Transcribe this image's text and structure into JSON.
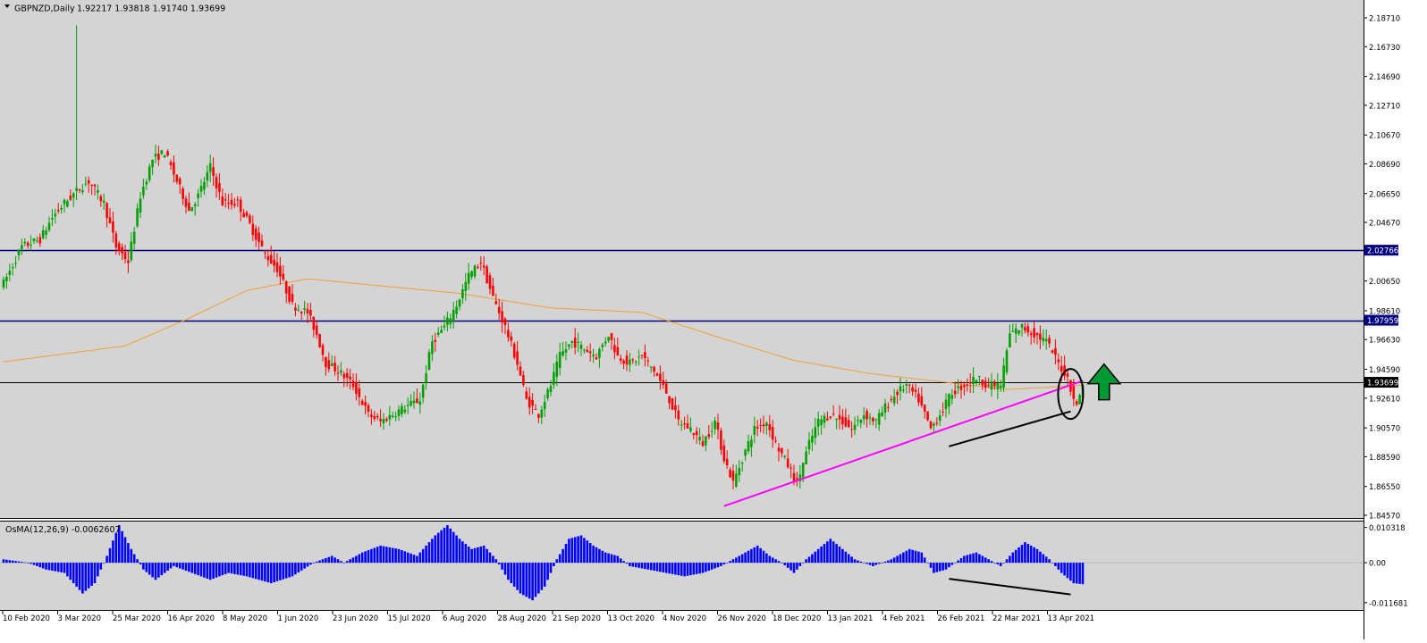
{
  "header": {
    "symbol": "GBPNZD,Daily",
    "ohlc": "1.92217 1.93818 1.91740 1.93699"
  },
  "osma": {
    "label": "OsMA(12,26,9) -0.0062607",
    "axis_labels": [
      "0.010318",
      "0.00",
      "-0.011681"
    ]
  },
  "colors": {
    "background": "#d4d4d4",
    "bull": "#00a000",
    "bear": "#ff0000",
    "ma": "#f0a030",
    "hline": "#000080",
    "support": "#ff00ff",
    "histogram": "#0000ff",
    "arrow": "#009933"
  },
  "chart_data": {
    "type": "candlestick",
    "y_range": [
      1.8457,
      2.1871
    ],
    "y_ticks": [
      "2.18710",
      "2.16730",
      "2.14690",
      "2.12710",
      "2.10670",
      "2.08690",
      "2.06650",
      "2.04670",
      "2.00650",
      "1.98610",
      "1.96630",
      "1.94590",
      "1.92610",
      "1.90570",
      "1.88590",
      "1.86550",
      "1.84570"
    ],
    "x_labels": [
      "10 Feb 2020",
      "3 Mar 2020",
      "25 Mar 2020",
      "16 Apr 2020",
      "8 May 2020",
      "1 Jun 2020",
      "23 Jun 2020",
      "15 Jul 2020",
      "6 Aug 2020",
      "28 Aug 2020",
      "21 Sep 2020",
      "13 Oct 2020",
      "4 Nov 2020",
      "26 Nov 2020",
      "18 Dec 2020",
      "13 Jan 2021",
      "4 Feb 2021",
      "26 Feb 2021",
      "22 Mar 2021",
      "13 Apr 2021"
    ],
    "price_levels": [
      {
        "value": 2.02766,
        "label": "2.02766"
      },
      {
        "value": 1.97959,
        "label": "1.97959"
      },
      {
        "value": 1.93699,
        "label": "1.93699"
      }
    ],
    "waypoints": [
      [
        0,
        2.005
      ],
      [
        6,
        2.03
      ],
      [
        12,
        2.035
      ],
      [
        16,
        2.05
      ],
      [
        20,
        2.06
      ],
      [
        25,
        2.07
      ],
      [
        28,
        2.075
      ],
      [
        33,
        2.06
      ],
      [
        37,
        2.03
      ],
      [
        41,
        2.02
      ],
      [
        45,
        2.065
      ],
      [
        49,
        2.09
      ],
      [
        53,
        2.095
      ],
      [
        57,
        2.075
      ],
      [
        61,
        2.055
      ],
      [
        64,
        2.065
      ],
      [
        68,
        2.085
      ],
      [
        72,
        2.06
      ],
      [
        77,
        2.06
      ],
      [
        81,
        2.045
      ],
      [
        86,
        2.025
      ],
      [
        90,
        2.015
      ],
      [
        95,
        1.99
      ],
      [
        100,
        1.985
      ],
      [
        103,
        1.97
      ],
      [
        106,
        1.95
      ],
      [
        110,
        1.945
      ],
      [
        115,
        1.935
      ],
      [
        120,
        1.915
      ],
      [
        124,
        1.91
      ],
      [
        128,
        1.915
      ],
      [
        132,
        1.92
      ],
      [
        137,
        1.925
      ],
      [
        141,
        1.965
      ],
      [
        145,
        1.975
      ],
      [
        149,
        1.99
      ],
      [
        153,
        2.01
      ],
      [
        157,
        2.02
      ],
      [
        161,
        1.995
      ],
      [
        165,
        1.975
      ],
      [
        169,
        1.95
      ],
      [
        172,
        1.925
      ],
      [
        176,
        1.915
      ],
      [
        180,
        1.935
      ],
      [
        183,
        1.955
      ],
      [
        187,
        1.965
      ],
      [
        191,
        1.96
      ],
      [
        195,
        1.955
      ],
      [
        199,
        1.97
      ],
      [
        202,
        1.955
      ],
      [
        206,
        1.95
      ],
      [
        210,
        1.955
      ],
      [
        214,
        1.945
      ],
      [
        218,
        1.93
      ],
      [
        222,
        1.91
      ],
      [
        226,
        1.905
      ],
      [
        230,
        1.895
      ],
      [
        234,
        1.91
      ],
      [
        237,
        1.885
      ],
      [
        240,
        1.868
      ],
      [
        244,
        1.89
      ],
      [
        247,
        1.905
      ],
      [
        251,
        1.91
      ],
      [
        254,
        1.895
      ],
      [
        258,
        1.88
      ],
      [
        261,
        1.868
      ],
      [
        265,
        1.895
      ],
      [
        268,
        1.91
      ],
      [
        272,
        1.915
      ],
      [
        276,
        1.91
      ],
      [
        279,
        1.905
      ],
      [
        283,
        1.915
      ],
      [
        287,
        1.91
      ],
      [
        290,
        1.92
      ],
      [
        294,
        1.93
      ],
      [
        297,
        1.935
      ],
      [
        301,
        1.925
      ],
      [
        305,
        1.905
      ],
      [
        308,
        1.915
      ],
      [
        312,
        1.93
      ],
      [
        316,
        1.935
      ],
      [
        320,
        1.94
      ],
      [
        324,
        1.935
      ],
      [
        328,
        1.935
      ],
      [
        331,
        1.97
      ],
      [
        335,
        1.975
      ],
      [
        339,
        1.97
      ],
      [
        343,
        1.965
      ],
      [
        347,
        1.95
      ],
      [
        350,
        1.94
      ],
      [
        353,
        1.92
      ],
      [
        355,
        1.937
      ]
    ],
    "ma_path": [
      [
        0,
        1.951
      ],
      [
        40,
        1.962
      ],
      [
        60,
        1.98
      ],
      [
        80,
        2.0
      ],
      [
        100,
        2.008
      ],
      [
        120,
        2.004
      ],
      [
        150,
        1.998
      ],
      [
        180,
        1.988
      ],
      [
        210,
        1.985
      ],
      [
        235,
        1.968
      ],
      [
        260,
        1.952
      ],
      [
        285,
        1.943
      ],
      [
        310,
        1.937
      ],
      [
        330,
        1.932
      ],
      [
        355,
        1.935
      ]
    ],
    "spike_wick": {
      "index": 24,
      "high": 2.182
    },
    "osma_waypoints": [
      [
        0,
        0.001
      ],
      [
        8,
        0.0
      ],
      [
        14,
        -0.002
      ],
      [
        20,
        -0.003
      ],
      [
        26,
        -0.009
      ],
      [
        30,
        -0.006
      ],
      [
        34,
        0.002
      ],
      [
        38,
        0.011
      ],
      [
        42,
        0.004
      ],
      [
        46,
        -0.002
      ],
      [
        50,
        -0.005
      ],
      [
        56,
        -0.001
      ],
      [
        62,
        -0.003
      ],
      [
        68,
        -0.005
      ],
      [
        74,
        -0.003
      ],
      [
        80,
        -0.004
      ],
      [
        88,
        -0.006
      ],
      [
        95,
        -0.004
      ],
      [
        102,
        0.0
      ],
      [
        108,
        0.002
      ],
      [
        112,
        0.0
      ],
      [
        118,
        0.003
      ],
      [
        124,
        0.005
      ],
      [
        130,
        0.004
      ],
      [
        136,
        0.002
      ],
      [
        142,
        0.008
      ],
      [
        146,
        0.011
      ],
      [
        150,
        0.007
      ],
      [
        154,
        0.004
      ],
      [
        158,
        0.005
      ],
      [
        162,
        0.001
      ],
      [
        166,
        -0.005
      ],
      [
        170,
        -0.009
      ],
      [
        174,
        -0.011
      ],
      [
        178,
        -0.007
      ],
      [
        182,
        0.001
      ],
      [
        186,
        0.007
      ],
      [
        190,
        0.008
      ],
      [
        194,
        0.005
      ],
      [
        198,
        0.003
      ],
      [
        202,
        0.002
      ],
      [
        206,
        -0.001
      ],
      [
        212,
        -0.002
      ],
      [
        218,
        -0.003
      ],
      [
        224,
        -0.004
      ],
      [
        230,
        -0.003
      ],
      [
        236,
        -0.001
      ],
      [
        240,
        0.001
      ],
      [
        244,
        0.003
      ],
      [
        248,
        0.005
      ],
      [
        252,
        0.002
      ],
      [
        256,
        0.0
      ],
      [
        260,
        -0.003
      ],
      [
        264,
        0.001
      ],
      [
        268,
        0.004
      ],
      [
        272,
        0.007
      ],
      [
        276,
        0.004
      ],
      [
        280,
        0.001
      ],
      [
        286,
        -0.001
      ],
      [
        292,
        0.001
      ],
      [
        298,
        0.004
      ],
      [
        302,
        0.003
      ],
      [
        306,
        -0.003
      ],
      [
        310,
        -0.002
      ],
      [
        316,
        0.002
      ],
      [
        320,
        0.003
      ],
      [
        324,
        0.001
      ],
      [
        328,
        -0.001
      ],
      [
        332,
        0.003
      ],
      [
        336,
        0.006
      ],
      [
        340,
        0.004
      ],
      [
        344,
        0.001
      ],
      [
        348,
        -0.003
      ],
      [
        352,
        -0.006
      ],
      [
        355,
        -0.0063
      ]
    ],
    "osma_range": [
      -0.01383,
      0.01205
    ],
    "annotations": {
      "support_line": [
        [
          237,
          1.852
        ],
        [
          355,
          1.938
        ]
      ],
      "price_trendline": [
        [
          311,
          1.893
        ],
        [
          351,
          1.917
        ]
      ],
      "osma_trendline": [
        [
          311,
          -0.0047
        ],
        [
          351,
          -0.0093
        ]
      ],
      "circle_center": [
        351,
        1.929
      ],
      "arrow_at": [
        362,
        1.936
      ]
    }
  }
}
